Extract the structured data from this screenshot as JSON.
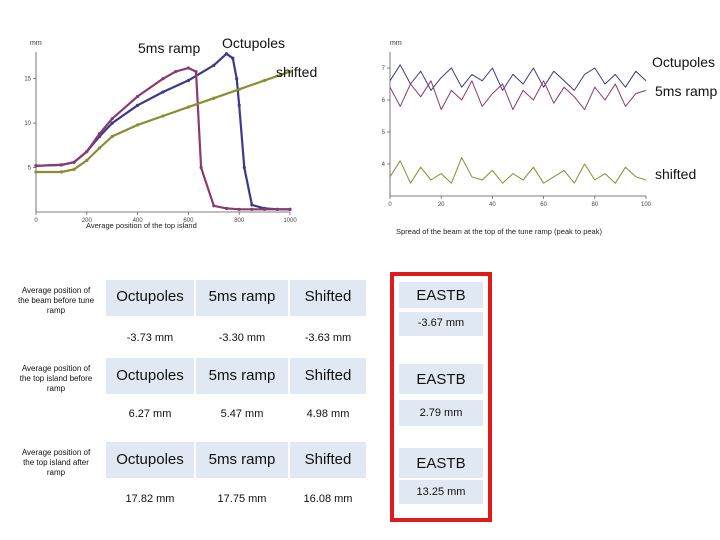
{
  "left_chart": {
    "unit": "mm",
    "caption": "Average position of the top island",
    "y_tick_labels": [
      "15",
      "10",
      "5"
    ],
    "x_tick_labels": [
      "0",
      "200",
      "400",
      "600",
      "800",
      "1000"
    ],
    "annotations": [
      "5ms ramp",
      "Octupoles",
      "shifted"
    ]
  },
  "right_chart": {
    "unit": "mm",
    "caption": "Spread of the beam at the top of the tune ramp (peak to peak)",
    "y_tick_labels": [
      "7",
      "6",
      "5",
      "4"
    ],
    "x_tick_labels": [
      "0",
      "20",
      "40",
      "60",
      "80",
      "100"
    ],
    "annotations": [
      "Octupoles",
      "5ms ramp",
      "shifted"
    ]
  },
  "chart_data": [
    {
      "type": "line",
      "xlim": [
        0,
        1000
      ],
      "ylim": [
        0,
        18
      ],
      "series": [
        {
          "color": "#3a3a8c",
          "x": [
            0,
            100,
            150,
            200,
            250,
            300,
            400,
            500,
            600,
            700,
            750,
            775,
            790,
            800,
            820,
            850,
            900,
            950,
            1000
          ],
          "y": [
            5.2,
            5.3,
            5.6,
            6.8,
            8.5,
            10.0,
            12.0,
            13.5,
            14.8,
            16.5,
            17.8,
            17.3,
            15.0,
            12.0,
            5.0,
            0.8,
            0.4,
            0.3,
            0.3
          ]
        },
        {
          "color": "#8c3a6e",
          "x": [
            0,
            100,
            150,
            200,
            250,
            300,
            400,
            500,
            550,
            600,
            630,
            650,
            700,
            750,
            800,
            850,
            900,
            950,
            1000
          ],
          "y": [
            5.2,
            5.3,
            5.6,
            6.8,
            8.8,
            10.5,
            13.0,
            15.0,
            15.8,
            16.2,
            15.8,
            5.0,
            0.7,
            0.4,
            0.3,
            0.3,
            0.3,
            0.3,
            0.3
          ]
        },
        {
          "color": "#8c8c32",
          "x": [
            0,
            100,
            150,
            200,
            250,
            300,
            400,
            500,
            600,
            700,
            800,
            900,
            1000
          ],
          "y": [
            4.5,
            4.5,
            4.8,
            5.8,
            7.2,
            8.5,
            9.8,
            10.8,
            11.8,
            12.8,
            13.8,
            14.8,
            15.8
          ]
        }
      ]
    },
    {
      "type": "line",
      "xlim": [
        0,
        100
      ],
      "ylim": [
        3,
        7.5
      ],
      "series": [
        {
          "color": "#3a3a8c",
          "x": [
            0,
            4,
            8,
            12,
            16,
            20,
            24,
            28,
            32,
            36,
            40,
            44,
            48,
            52,
            56,
            60,
            64,
            68,
            72,
            76,
            80,
            84,
            88,
            92,
            96,
            100
          ],
          "y": [
            6.6,
            7.1,
            6.5,
            6.9,
            6.3,
            6.7,
            7.0,
            6.4,
            6.8,
            6.6,
            7.0,
            6.3,
            6.8,
            6.5,
            7.0,
            6.4,
            6.9,
            6.6,
            6.3,
            6.8,
            7.0,
            6.5,
            6.8,
            6.4,
            6.9,
            6.6
          ]
        },
        {
          "color": "#8c3a6e",
          "x": [
            0,
            4,
            8,
            12,
            16,
            20,
            24,
            28,
            32,
            36,
            40,
            44,
            48,
            52,
            56,
            60,
            64,
            68,
            72,
            76,
            80,
            84,
            88,
            92,
            96,
            100
          ],
          "y": [
            6.4,
            5.8,
            6.5,
            6.1,
            6.6,
            5.7,
            6.3,
            6.0,
            6.6,
            5.8,
            6.2,
            6.5,
            5.7,
            6.3,
            6.0,
            6.6,
            5.9,
            6.4,
            6.1,
            5.7,
            6.4,
            6.0,
            6.5,
            5.8,
            6.2,
            6.3
          ]
        },
        {
          "color": "#8c8c32",
          "x": [
            0,
            4,
            8,
            12,
            16,
            20,
            24,
            28,
            32,
            36,
            40,
            44,
            48,
            52,
            56,
            60,
            64,
            68,
            72,
            76,
            80,
            84,
            88,
            92,
            96,
            100
          ],
          "y": [
            3.6,
            4.1,
            3.4,
            3.9,
            3.5,
            3.7,
            3.4,
            4.2,
            3.6,
            3.5,
            3.8,
            3.4,
            3.7,
            3.5,
            3.9,
            3.4,
            3.6,
            3.8,
            3.4,
            4.0,
            3.5,
            3.7,
            3.4,
            3.9,
            3.6,
            3.5
          ]
        }
      ]
    }
  ],
  "table": {
    "rows": [
      {
        "label": "Average position of the beam before tune ramp",
        "headers": [
          "Octupoles",
          "5ms ramp",
          "Shifted"
        ],
        "values": [
          "-3.73 mm",
          "-3.30 mm",
          "-3.63 mm"
        ],
        "eastb_header": "EASTB",
        "eastb_value": "-3.67 mm"
      },
      {
        "label": "Average position of the top island before ramp",
        "headers": [
          "Octupoles",
          "5ms ramp",
          "Shifted"
        ],
        "values": [
          "6.27 mm",
          "5.47 mm",
          "4.98 mm"
        ],
        "eastb_header": "EASTB",
        "eastb_value": "2.79 mm"
      },
      {
        "label": "Average position of the top island after ramp",
        "headers": [
          "Octupoles",
          "5ms ramp",
          "Shifted"
        ],
        "values": [
          "17.82 mm",
          "17.75 mm",
          "16.08 mm"
        ],
        "eastb_header": "EASTB",
        "eastb_value": "13.25 mm"
      }
    ],
    "highlight_color": "#e01a1a"
  }
}
